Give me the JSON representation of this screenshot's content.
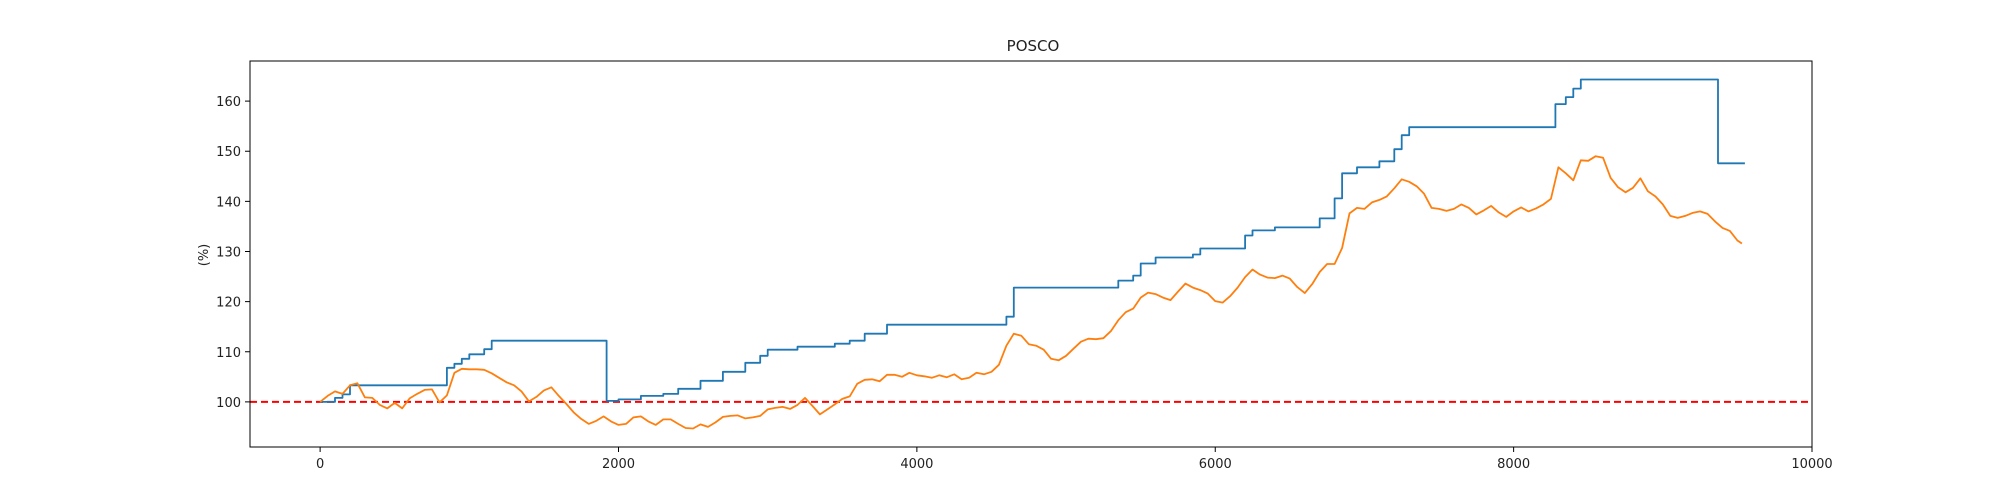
{
  "chart_data": {
    "type": "line",
    "title": "POSCO",
    "xlabel": "",
    "ylabel": "(%)",
    "xlim": [
      -470,
      10000
    ],
    "ylim": [
      91,
      168
    ],
    "xticks": [
      0,
      2000,
      4000,
      6000,
      8000,
      10000
    ],
    "yticks": [
      100,
      110,
      120,
      130,
      140,
      150,
      160
    ],
    "grid": false,
    "colors": {
      "series_1": "#1f77b4",
      "series_2": "#ff7f0e",
      "reference": "#ff0000"
    },
    "series": [
      {
        "step": true,
        "points": [
          [
            0,
            100
          ],
          [
            100,
            100.8
          ],
          [
            150,
            101.5
          ],
          [
            200,
            103.3
          ],
          [
            800,
            103.3
          ],
          [
            850,
            106.8
          ],
          [
            900,
            107.6
          ],
          [
            950,
            108.6
          ],
          [
            1000,
            109.5
          ],
          [
            1100,
            110.5
          ],
          [
            1150,
            112.2
          ],
          [
            1920,
            112.2
          ],
          [
            1920,
            100.2
          ],
          [
            2000,
            100.5
          ],
          [
            2150,
            101.2
          ],
          [
            2300,
            101.6
          ],
          [
            2400,
            102.6
          ],
          [
            2550,
            104.2
          ],
          [
            2700,
            106.0
          ],
          [
            2850,
            107.8
          ],
          [
            2950,
            109.2
          ],
          [
            3000,
            110.4
          ],
          [
            3200,
            111.0
          ],
          [
            3450,
            111.6
          ],
          [
            3550,
            112.2
          ],
          [
            3650,
            113.6
          ],
          [
            3800,
            115.4
          ],
          [
            4550,
            115.4
          ],
          [
            4600,
            117.0
          ],
          [
            4650,
            122.8
          ],
          [
            5300,
            122.8
          ],
          [
            5350,
            124.2
          ],
          [
            5450,
            125.2
          ],
          [
            5500,
            127.6
          ],
          [
            5600,
            128.8
          ],
          [
            5850,
            129.4
          ],
          [
            5900,
            130.6
          ],
          [
            6150,
            130.6
          ],
          [
            6200,
            133.2
          ],
          [
            6250,
            134.2
          ],
          [
            6400,
            134.8
          ],
          [
            6650,
            134.8
          ],
          [
            6700,
            136.6
          ],
          [
            6800,
            140.6
          ],
          [
            6850,
            145.6
          ],
          [
            6950,
            146.8
          ],
          [
            7100,
            148.0
          ],
          [
            7200,
            150.4
          ],
          [
            7250,
            153.2
          ],
          [
            7300,
            154.8
          ],
          [
            8250,
            154.8
          ],
          [
            8280,
            159.4
          ],
          [
            8350,
            160.8
          ],
          [
            8400,
            162.5
          ],
          [
            8450,
            164.3
          ],
          [
            9350,
            164.3
          ],
          [
            9370,
            147.6
          ],
          [
            9550,
            147.6
          ]
        ]
      },
      {
        "step": false,
        "points": [
          [
            0,
            100
          ],
          [
            50,
            101.2
          ],
          [
            100,
            102.1
          ],
          [
            150,
            101.6
          ],
          [
            200,
            103.3
          ],
          [
            250,
            103.7
          ],
          [
            300,
            100.9
          ],
          [
            350,
            100.8
          ],
          [
            400,
            99.4
          ],
          [
            450,
            98.7
          ],
          [
            500,
            99.8
          ],
          [
            550,
            98.7
          ],
          [
            600,
            100.7
          ],
          [
            650,
            101.6
          ],
          [
            700,
            102.4
          ],
          [
            750,
            102.5
          ],
          [
            800,
            99.9
          ],
          [
            850,
            101.3
          ],
          [
            900,
            105.8
          ],
          [
            950,
            106.6
          ],
          [
            1000,
            106.5
          ],
          [
            1050,
            106.5
          ],
          [
            1100,
            106.4
          ],
          [
            1150,
            105.7
          ],
          [
            1200,
            104.8
          ],
          [
            1250,
            103.9
          ],
          [
            1300,
            103.3
          ],
          [
            1350,
            102.1
          ],
          [
            1400,
            100.1
          ],
          [
            1450,
            101.0
          ],
          [
            1500,
            102.3
          ],
          [
            1550,
            102.9
          ],
          [
            1600,
            101.2
          ],
          [
            1650,
            99.6
          ],
          [
            1700,
            97.9
          ],
          [
            1750,
            96.6
          ],
          [
            1800,
            95.6
          ],
          [
            1850,
            96.2
          ],
          [
            1900,
            97.1
          ],
          [
            1950,
            96.1
          ],
          [
            2000,
            95.4
          ],
          [
            2050,
            95.6
          ],
          [
            2100,
            96.9
          ],
          [
            2150,
            97.1
          ],
          [
            2200,
            96.1
          ],
          [
            2250,
            95.4
          ],
          [
            2300,
            96.5
          ],
          [
            2350,
            96.5
          ],
          [
            2400,
            95.6
          ],
          [
            2450,
            94.8
          ],
          [
            2500,
            94.7
          ],
          [
            2550,
            95.5
          ],
          [
            2600,
            95.0
          ],
          [
            2650,
            95.9
          ],
          [
            2700,
            97.0
          ],
          [
            2750,
            97.2
          ],
          [
            2800,
            97.3
          ],
          [
            2850,
            96.7
          ],
          [
            2900,
            96.9
          ],
          [
            2950,
            97.2
          ],
          [
            3000,
            98.5
          ],
          [
            3050,
            98.8
          ],
          [
            3100,
            99.0
          ],
          [
            3150,
            98.6
          ],
          [
            3200,
            99.4
          ],
          [
            3250,
            100.8
          ],
          [
            3300,
            99.2
          ],
          [
            3350,
            97.5
          ],
          [
            3400,
            98.5
          ],
          [
            3450,
            99.5
          ],
          [
            3500,
            100.6
          ],
          [
            3550,
            101.1
          ],
          [
            3600,
            103.6
          ],
          [
            3650,
            104.4
          ],
          [
            3700,
            104.5
          ],
          [
            3750,
            104.1
          ],
          [
            3800,
            105.4
          ],
          [
            3850,
            105.4
          ],
          [
            3900,
            105.0
          ],
          [
            3950,
            105.8
          ],
          [
            4000,
            105.3
          ],
          [
            4050,
            105.1
          ],
          [
            4100,
            104.8
          ],
          [
            4150,
            105.3
          ],
          [
            4200,
            104.9
          ],
          [
            4250,
            105.5
          ],
          [
            4300,
            104.5
          ],
          [
            4350,
            104.8
          ],
          [
            4400,
            105.8
          ],
          [
            4450,
            105.5
          ],
          [
            4500,
            106.0
          ],
          [
            4550,
            107.4
          ],
          [
            4600,
            111.2
          ],
          [
            4650,
            113.6
          ],
          [
            4700,
            113.2
          ],
          [
            4750,
            111.5
          ],
          [
            4800,
            111.2
          ],
          [
            4850,
            110.4
          ],
          [
            4900,
            108.6
          ],
          [
            4950,
            108.3
          ],
          [
            5000,
            109.2
          ],
          [
            5050,
            110.6
          ],
          [
            5100,
            112.0
          ],
          [
            5150,
            112.6
          ],
          [
            5200,
            112.5
          ],
          [
            5250,
            112.7
          ],
          [
            5300,
            114.1
          ],
          [
            5350,
            116.3
          ],
          [
            5400,
            117.9
          ],
          [
            5450,
            118.6
          ],
          [
            5500,
            120.8
          ],
          [
            5550,
            121.8
          ],
          [
            5600,
            121.5
          ],
          [
            5650,
            120.8
          ],
          [
            5700,
            120.3
          ],
          [
            5750,
            122.0
          ],
          [
            5800,
            123.6
          ],
          [
            5850,
            122.8
          ],
          [
            5900,
            122.3
          ],
          [
            5950,
            121.6
          ],
          [
            6000,
            120.1
          ],
          [
            6050,
            119.8
          ],
          [
            6100,
            121.1
          ],
          [
            6150,
            122.8
          ],
          [
            6200,
            124.9
          ],
          [
            6250,
            126.4
          ],
          [
            6300,
            125.4
          ],
          [
            6350,
            124.8
          ],
          [
            6400,
            124.7
          ],
          [
            6450,
            125.2
          ],
          [
            6500,
            124.6
          ],
          [
            6550,
            122.9
          ],
          [
            6600,
            121.7
          ],
          [
            6650,
            123.5
          ],
          [
            6700,
            125.9
          ],
          [
            6750,
            127.5
          ],
          [
            6800,
            127.5
          ],
          [
            6850,
            130.7
          ],
          [
            6900,
            137.6
          ],
          [
            6950,
            138.7
          ],
          [
            7000,
            138.5
          ],
          [
            7050,
            139.8
          ],
          [
            7100,
            140.3
          ],
          [
            7150,
            141.0
          ],
          [
            7200,
            142.6
          ],
          [
            7250,
            144.4
          ],
          [
            7300,
            143.9
          ],
          [
            7350,
            143.0
          ],
          [
            7400,
            141.5
          ],
          [
            7450,
            138.7
          ],
          [
            7500,
            138.5
          ],
          [
            7550,
            138.1
          ],
          [
            7600,
            138.5
          ],
          [
            7650,
            139.4
          ],
          [
            7700,
            138.7
          ],
          [
            7750,
            137.4
          ],
          [
            7800,
            138.2
          ],
          [
            7850,
            139.1
          ],
          [
            7900,
            137.8
          ],
          [
            7950,
            136.9
          ],
          [
            8000,
            138.0
          ],
          [
            8050,
            138.8
          ],
          [
            8100,
            138.0
          ],
          [
            8150,
            138.6
          ],
          [
            8200,
            139.4
          ],
          [
            8250,
            140.5
          ],
          [
            8300,
            146.8
          ],
          [
            8350,
            145.6
          ],
          [
            8400,
            144.2
          ],
          [
            8450,
            148.2
          ],
          [
            8500,
            148.1
          ],
          [
            8550,
            149.0
          ],
          [
            8600,
            148.7
          ],
          [
            8650,
            144.7
          ],
          [
            8700,
            142.8
          ],
          [
            8750,
            141.8
          ],
          [
            8800,
            142.7
          ],
          [
            8850,
            144.6
          ],
          [
            8900,
            142.0
          ],
          [
            8950,
            141.0
          ],
          [
            9000,
            139.4
          ],
          [
            9050,
            137.1
          ],
          [
            9100,
            136.7
          ],
          [
            9150,
            137.1
          ],
          [
            9200,
            137.7
          ],
          [
            9250,
            138.0
          ],
          [
            9300,
            137.5
          ],
          [
            9350,
            136.0
          ],
          [
            9400,
            134.7
          ],
          [
            9450,
            134.1
          ],
          [
            9500,
            132.2
          ],
          [
            9530,
            131.6
          ]
        ]
      }
    ],
    "reference_line": {
      "y": 100,
      "style": "dashed"
    }
  }
}
